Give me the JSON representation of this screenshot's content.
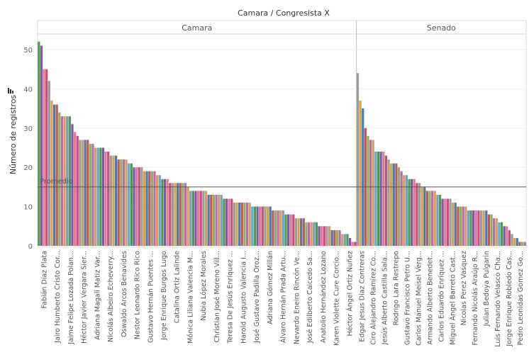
{
  "chart_data": {
    "type": "bar",
    "title": "Camara / Congresista X",
    "ylabel": "Número de registros",
    "xlabel": "",
    "ylim": [
      0,
      55
    ],
    "yticks": [
      0,
      10,
      20,
      30,
      40,
      50
    ],
    "grid": true,
    "reference_line": {
      "label": "Promedio",
      "value": 15
    },
    "panels": [
      {
        "name": "Camara",
        "categories": [
          "Fabián Díaz Plata",
          "Jairo Humberto Cristo Cor...",
          "Jaime Felipe Lozada Polan...",
          "Héctor Javier Vergara Sier...",
          "Adriana Magali Matiz Var...",
          "Nicolás Albeiro Echeverry...",
          "Oswaldo Arcos Benavides",
          "Nestor Leonardo Rico Rico",
          "Gustavo Hernán Puentes ...",
          "Jorge Enrique Burgos Lugo",
          "Catalina Ortiz Lalinde",
          "Mónica Liliana Valencia M...",
          "Nubia López Morales",
          "Christian José Moreno Vill...",
          "Teresa De Jesús Enríquez ...",
          "Harold Augusto Valencia I...",
          "José Gustavo Padilla Oroz...",
          "Adriana Gómez Millán",
          "Álvaro Hernán Prada Artu...",
          "Nevardo Eneiro Rincón Ve...",
          "José Edilberto Caicedo Sa...",
          "Anatolio Hernández Lozano",
          "Karen Violette Cure Corcio...",
          "Héctor Ángel Ortiz Nuñez"
        ],
        "values": [
          52,
          51,
          45,
          45,
          42,
          37,
          36,
          36,
          34,
          33,
          33,
          33,
          33,
          31,
          29,
          28,
          27,
          27,
          27,
          27,
          26,
          26,
          25,
          25,
          25,
          25,
          24,
          24,
          23,
          23,
          23,
          22,
          22,
          22,
          22,
          21,
          21,
          20,
          20,
          20,
          20,
          19,
          19,
          19,
          19,
          19,
          18,
          18,
          17,
          17,
          17,
          16,
          16,
          16,
          16,
          16,
          16,
          16,
          15,
          14,
          14,
          14,
          14,
          14,
          14,
          14,
          13,
          13,
          13,
          13,
          13,
          13,
          12,
          12,
          12,
          12,
          11,
          11,
          11,
          11,
          11,
          11,
          11,
          10,
          10,
          10,
          10,
          10,
          10,
          10,
          10,
          9,
          9,
          9,
          9,
          9,
          8,
          8,
          8,
          8,
          7,
          7,
          7,
          7,
          6,
          6,
          6,
          6,
          6,
          5,
          5,
          5,
          5,
          5,
          4,
          4,
          4,
          4,
          3,
          3,
          3,
          2,
          1,
          1
        ]
      },
      {
        "name": "Senado",
        "categories": [
          "Edgar Jesus Diaz Contreras",
          "Ciro Alejandro Ramirez Co...",
          "Jesús Alberto Castilla Sala...",
          "Rodrigo Lara Restrepo",
          "Gustavo Francisco Petro U...",
          "Carlos Manuel Meisel Verg...",
          "Armando Alberto Benedet...",
          "Carlos Eduardo Enriquez ...",
          "Miguel Ángel Barreto Cast...",
          "Nicolas Perez Vasquez",
          "Fernando Nicolás Araújo R...",
          "Julian Bedoya Pulgarin",
          "Luis Fernando Velasco Cha...",
          "Jorge Enrique Robledo Cas...",
          "Pedro Leonidas Gomez Go..."
        ],
        "values": [
          44,
          37,
          35,
          30,
          28,
          27,
          27,
          24,
          24,
          24,
          24,
          23,
          22,
          21,
          21,
          21,
          20,
          19,
          18,
          18,
          17,
          17,
          17,
          16,
          16,
          15,
          15,
          14,
          14,
          14,
          14,
          13,
          13,
          12,
          12,
          12,
          12,
          11,
          11,
          10,
          10,
          10,
          10,
          9,
          9,
          9,
          9,
          9,
          9,
          9,
          9,
          8,
          8,
          7,
          7,
          6,
          6,
          5,
          5,
          4,
          3,
          2,
          2,
          1,
          1,
          1
        ]
      }
    ]
  }
}
